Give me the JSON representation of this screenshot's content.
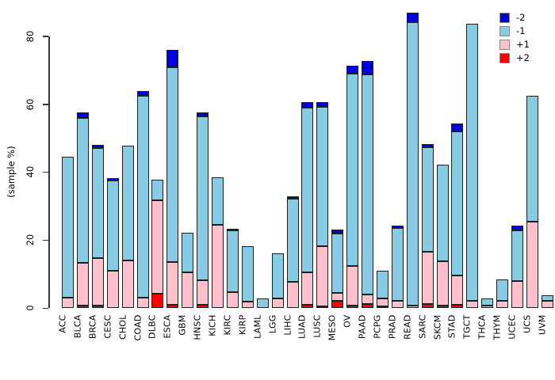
{
  "figure": {
    "ylabel": "(sample %)"
  },
  "legend": {
    "items": [
      {
        "label": "-2",
        "color": "#0000E0"
      },
      {
        "label": "-1",
        "color": "#87CBE5"
      },
      {
        "label": "+1",
        "color": "#FFC0CB"
      },
      {
        "label": "+2",
        "color": "#FE0000"
      }
    ]
  },
  "chart_data": {
    "type": "bar",
    "stacked": true,
    "title": "",
    "xlabel": "",
    "ylabel": "(sample %)",
    "ylim": [
      0,
      88
    ],
    "yticks": [
      0,
      20,
      40,
      60,
      80
    ],
    "grid": false,
    "legend_position": "top-right",
    "categories": [
      "ACC",
      "BLCA",
      "BRCA",
      "CESC",
      "CHOL",
      "COAD",
      "DLBC",
      "ESCA",
      "GBM",
      "HNSC",
      "KICH",
      "KIRC",
      "KIRP",
      "LAML",
      "LGG",
      "LIHC",
      "LUAD",
      "LUSC",
      "MESO",
      "OV",
      "PAAD",
      "PCPG",
      "PRAD",
      "READ",
      "SARC",
      "SKCM",
      "STAD",
      "TGCT",
      "THCA",
      "THYM",
      "UCEC",
      "UCS",
      "UVM"
    ],
    "series": [
      {
        "name": "+2",
        "color": "#FE0000",
        "values": [
          0,
          0.8,
          0.7,
          0,
          0,
          0,
          4.2,
          0.9,
          0,
          1.0,
          0,
          0,
          0,
          0,
          0,
          0,
          1.0,
          0.5,
          2.0,
          0.8,
          1.2,
          0.5,
          0,
          0,
          1.2,
          0.8,
          1.0,
          0,
          0,
          0,
          0,
          0,
          0
        ]
      },
      {
        "name": "+1",
        "color": "#FFC0CB",
        "values": [
          3.0,
          12.6,
          14.1,
          10.9,
          13.9,
          3.0,
          27.6,
          12.6,
          10.6,
          7.1,
          24.5,
          4.6,
          1.9,
          0,
          2.9,
          7.6,
          9.6,
          17.6,
          2.4,
          11.6,
          2.8,
          2.3,
          2.1,
          0.8,
          15.3,
          13.0,
          8.5,
          2.0,
          0.8,
          2.0,
          7.9,
          25.3,
          2.1
        ]
      },
      {
        "name": "-1",
        "color": "#87CBE5",
        "values": [
          41.5,
          42.6,
          32.4,
          26.7,
          33.8,
          59.4,
          6.0,
          57.4,
          11.6,
          48.4,
          13.9,
          18.3,
          16.2,
          2.9,
          13.2,
          24.5,
          48.3,
          41.1,
          17.6,
          56.5,
          64.7,
          8.2,
          21.4,
          83.4,
          30.9,
          28.5,
          42.6,
          81.6,
          1.9,
          6.3,
          15.0,
          37.2,
          1.7
        ]
      },
      {
        "name": "-2",
        "color": "#0000E0",
        "values": [
          0,
          1.5,
          0.8,
          0.7,
          0,
          1.4,
          0,
          5.1,
          0,
          1.2,
          0,
          0.5,
          0,
          0,
          0,
          0.8,
          1.7,
          1.4,
          1.2,
          2.5,
          4.0,
          0,
          0.7,
          2.8,
          0.8,
          0,
          2.2,
          0,
          0,
          0,
          1.3,
          0,
          0
        ]
      }
    ]
  }
}
